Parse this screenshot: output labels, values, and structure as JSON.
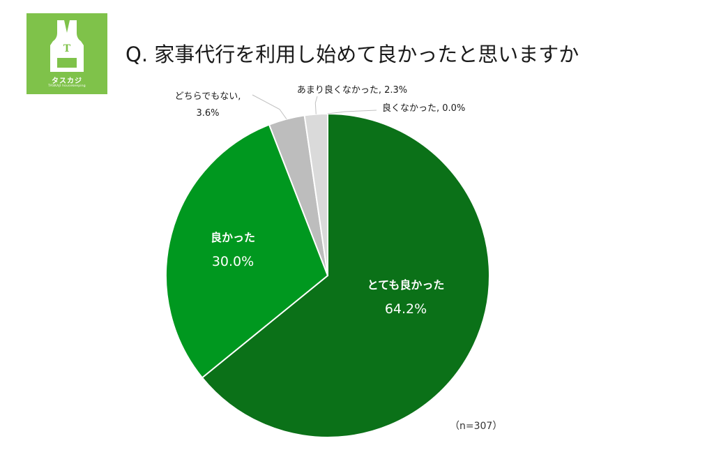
{
  "logo": {
    "emblem_letter": "T",
    "brand_name": "タスカジ",
    "brand_sub": "TASKAJI housekeeping",
    "color": "#7fc24a"
  },
  "title": "Q. 家事代行を利用し始めて良かったと思いますか",
  "note": "（n=307）",
  "chart_data": {
    "type": "pie",
    "start_angle_deg": 0,
    "direction": "clockwise",
    "slices": [
      {
        "label": "とても良かった",
        "value": 64.2,
        "value_text": "64.2%",
        "color": "#0b7118"
      },
      {
        "label": "良かった",
        "value": 30.0,
        "value_text": "30.0%",
        "color": "#00981f"
      },
      {
        "label": "どちらでもない,",
        "value": 3.6,
        "value_text": "3.6%",
        "color": "#bdbdbd"
      },
      {
        "label": "あまり良くなかった, 2.3%",
        "value": 2.3,
        "value_text": "2.3%",
        "color": "#dadada"
      },
      {
        "label": "良くなかった, 0.0%",
        "value": 0.0,
        "value_text": "0.0%",
        "color": "#eeeeee"
      }
    ]
  }
}
